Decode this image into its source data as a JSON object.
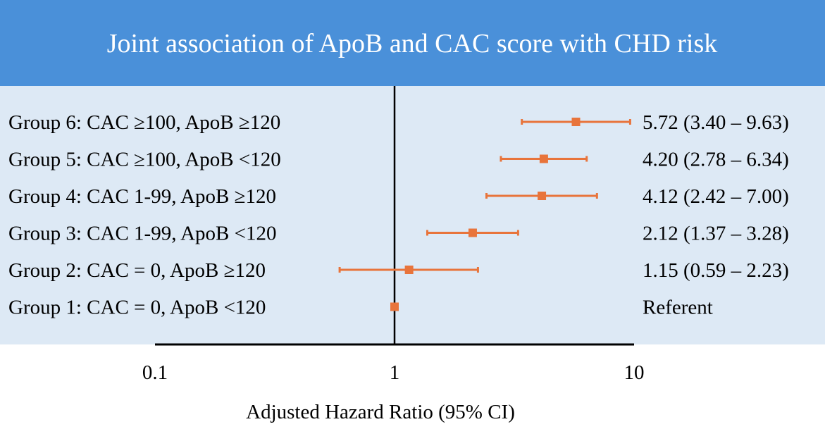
{
  "colors": {
    "header_bg": "#4a90d9",
    "panel_bg": "#dde9f5",
    "marker": "#e8743b",
    "axis": "#000000",
    "title_text": "#ffffff"
  },
  "chart_data": {
    "type": "forest",
    "title": "Joint association of ApoB and CAC score with CHD risk",
    "xlabel": "Adjusted Hazard Ratio (95% CI)",
    "xscale": "log",
    "xlim": [
      0.1,
      10
    ],
    "xticks": [
      0.1,
      1,
      10
    ],
    "xtick_labels": [
      "0.1",
      "1",
      "10"
    ],
    "reference_line": 1,
    "rows": [
      {
        "label": "Group 6: CAC ≥100, ApoB ≥120",
        "hr": 5.72,
        "lower": 3.4,
        "upper": 9.63,
        "text": "5.72 (3.40 – 9.63)"
      },
      {
        "label": "Group 5: CAC ≥100, ApoB <120",
        "hr": 4.2,
        "lower": 2.78,
        "upper": 6.34,
        "text": "4.20 (2.78 – 6.34)"
      },
      {
        "label": "Group 4: CAC 1-99, ApoB ≥120",
        "hr": 4.12,
        "lower": 2.42,
        "upper": 7.0,
        "text": "4.12 (2.42 – 7.00)"
      },
      {
        "label": "Group 3: CAC 1-99, ApoB <120",
        "hr": 2.12,
        "lower": 1.37,
        "upper": 3.28,
        "text": "2.12 (1.37 – 3.28)"
      },
      {
        "label": "Group 2: CAC = 0, ApoB ≥120",
        "hr": 1.15,
        "lower": 0.59,
        "upper": 2.23,
        "text": "1.15 (0.59 – 2.23)"
      },
      {
        "label": "Group 1: CAC = 0, ApoB <120",
        "hr": 1.0,
        "lower": null,
        "upper": null,
        "text": "Referent"
      }
    ]
  }
}
